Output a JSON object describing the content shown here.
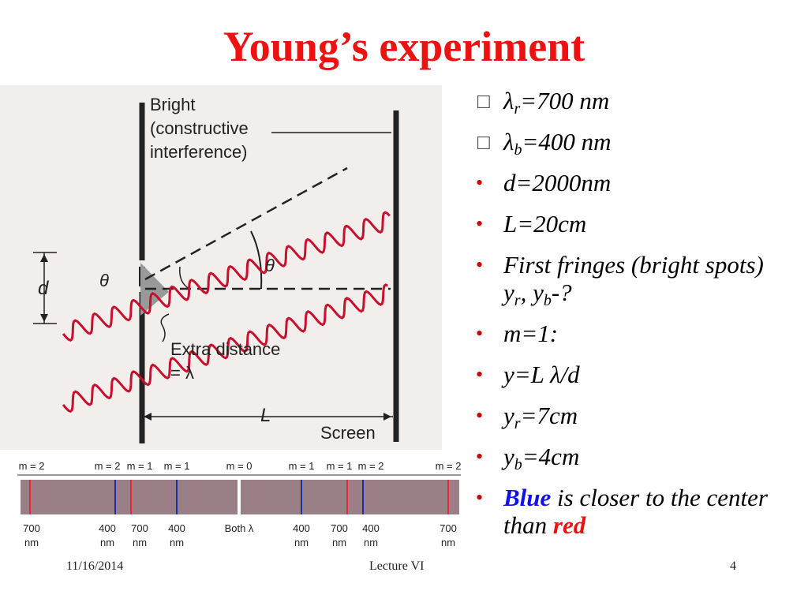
{
  "title": "Young’s experiment",
  "diagram": {
    "bright_line1": "Bright",
    "bright_line2": "(constructive",
    "bright_line3": "interference)",
    "d_label": "d",
    "theta_left": "θ",
    "theta_right": "θ",
    "extra_line1": "Extra distance",
    "extra_line2": "= λ",
    "L_label": "L",
    "screen_label": "Screen"
  },
  "fringe_pattern": {
    "top_labels": [
      "m = 2",
      "m = 2",
      "m = 1",
      "m = 1",
      "m = 0",
      "m = 1",
      "m = 1",
      "m = 2",
      "m = 2"
    ],
    "bottom_top": [
      "700",
      "400",
      "700",
      "400",
      "Both λ",
      "400",
      "700",
      "400",
      "700"
    ],
    "bottom_unit": [
      "nm",
      "nm",
      "nm",
      "nm",
      "",
      "nm",
      "nm",
      "nm",
      "nm"
    ],
    "colors": {
      "red": "#e8283c",
      "blue": "#1c2fa8",
      "band": "#9b7f86",
      "center": "#ffffff"
    }
  },
  "bullets": {
    "b1_sym": "λ",
    "b1_sub": "r",
    "b1_val": "=700 nm",
    "b2_sym": "λ",
    "b2_sub": "b",
    "b2_val": "=400 nm",
    "b3": "d=2000nm",
    "b4": "L=20cm",
    "b5_pre": "First fringes (bright spots) y",
    "b5_sub1": "r",
    "b5_mid": ", y",
    "b5_sub2": "b",
    "b5_post": "-?",
    "b6": "m=1:",
    "b7_pre": "y=L ",
    "b7_sym": "λ",
    "b7_post": "/d",
    "b8_pre": "y",
    "b8_sub": "r",
    "b8_post": "=7cm",
    "b9_pre": "y",
    "b9_sub": "b",
    "b9_post": "=4cm",
    "b10_blue": "Blue",
    "b10_mid": " is closer to the center than ",
    "b10_red": "red"
  },
  "footer": {
    "date": "11/16/2014",
    "lecture": "Lecture VI",
    "page": "4"
  }
}
